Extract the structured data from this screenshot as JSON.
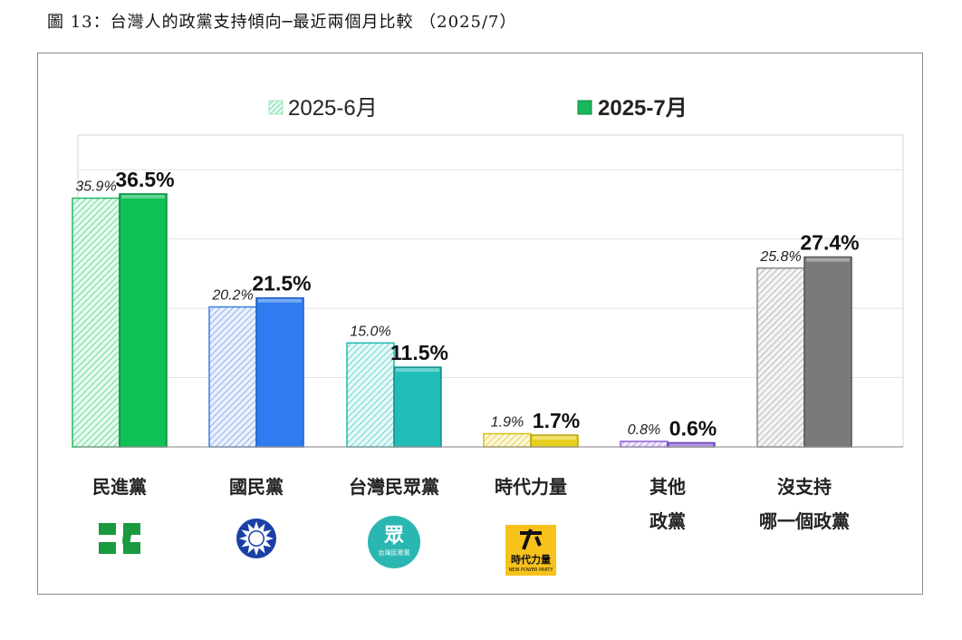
{
  "title": "圖 13：台灣人的政黨支持傾向─最近兩個月比較 （2025/7）",
  "chart_data": {
    "type": "bar",
    "ylim": [
      0,
      45
    ],
    "grid": true,
    "legend_position": "top-center",
    "series": [
      {
        "name": "2025-6月",
        "values": [
          35.9,
          20.2,
          15.0,
          1.9,
          0.8,
          25.8
        ],
        "labels": [
          "35.9%",
          "20.2%",
          "15.0%",
          "1.9%",
          "0.8%",
          "25.8%"
        ]
      },
      {
        "name": "2025-7月",
        "values": [
          36.5,
          21.5,
          11.5,
          1.7,
          0.6,
          27.4
        ],
        "labels": [
          "36.5%",
          "21.5%",
          "11.5%",
          "1.7%",
          "0.6%",
          "27.4%"
        ]
      }
    ],
    "categories": [
      {
        "lines": [
          "民進黨"
        ],
        "logo": "dpp-logo",
        "logo_text": "",
        "logo_subtext": ""
      },
      {
        "lines": [
          "國民黨"
        ],
        "logo": "kmt-logo",
        "logo_text": "",
        "logo_subtext": ""
      },
      {
        "lines": [
          "台灣民眾黨"
        ],
        "logo": "tpp-logo",
        "logo_text": "眾",
        "logo_subtext": "台灣民眾黨"
      },
      {
        "lines": [
          "時代力量"
        ],
        "logo": "npp-logo",
        "logo_text": "時代力量",
        "logo_subtext": "NEW POWER PARTY"
      },
      {
        "lines": [
          "其他",
          "政黨"
        ],
        "logo": "",
        "logo_text": "",
        "logo_subtext": ""
      },
      {
        "lines": [
          "沒支持",
          "哪一個政黨"
        ],
        "logo": "",
        "logo_text": "",
        "logo_subtext": ""
      }
    ],
    "colors": {
      "green": "#0ec055",
      "blue": "#2f7bf0",
      "teal": "#20bcb8",
      "yellow": "#e6cf1c",
      "purple": "#8a62d8",
      "gray": "#7a7a7a",
      "legend_old": "#9fe6c0",
      "legend_new": "#19b85a"
    }
  }
}
